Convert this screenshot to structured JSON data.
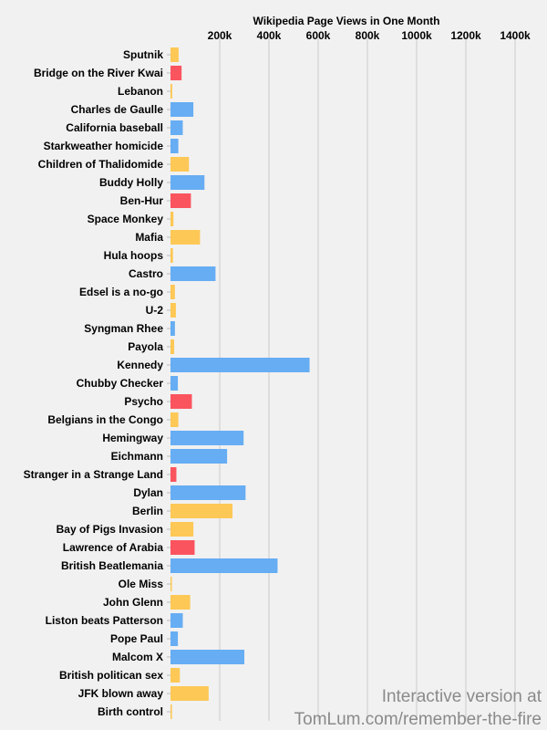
{
  "chart_data": {
    "type": "bar",
    "orientation": "horizontal",
    "title": "Wikipedia Page Views in One Month",
    "xlim": [
      0,
      1500000
    ],
    "x_ticks": [
      200000,
      400000,
      600000,
      800000,
      1000000,
      1200000,
      1400000
    ],
    "x_tick_labels": [
      "200k",
      "400k",
      "600k",
      "800k",
      "1000k",
      "1200k",
      "1400k"
    ],
    "grid": true,
    "categories": [
      "Sputnik",
      "Bridge on the River Kwai",
      "Lebanon",
      "Charles de Gaulle",
      "California baseball",
      "Starkweather homicide",
      "Children of Thalidomide",
      "Buddy Holly",
      "Ben-Hur",
      "Space Monkey",
      "Mafia",
      "Hula hoops",
      "Castro",
      "Edsel is a no-go",
      "U-2",
      "Syngman Rhee",
      "Payola",
      "Kennedy",
      "Chubby Checker",
      "Psycho",
      "Belgians in the Congo",
      "Hemingway",
      "Eichmann",
      "Stranger in a Strange Land",
      "Dylan",
      "Berlin",
      "Bay of Pigs Invasion",
      "Lawrence of Arabia",
      "British Beatlemania",
      "Ole Miss",
      "John Glenn",
      "Liston beats Patterson",
      "Pope Paul",
      "Malcom X",
      "British politican sex",
      "JFK blown away",
      "Birth control"
    ],
    "values": [
      33000,
      45000,
      7000,
      93000,
      50000,
      32000,
      75000,
      138000,
      83000,
      12000,
      120000,
      10000,
      183000,
      18000,
      22000,
      18000,
      15000,
      565000,
      30000,
      87000,
      32000,
      297000,
      230000,
      24000,
      305000,
      252000,
      93000,
      98000,
      435000,
      4000,
      80000,
      50000,
      30000,
      300000,
      38000,
      155000,
      6000
    ],
    "color_groups": [
      "yellow",
      "red",
      "yellow",
      "blue",
      "blue",
      "blue",
      "yellow",
      "blue",
      "red",
      "yellow",
      "yellow",
      "yellow",
      "blue",
      "yellow",
      "yellow",
      "blue",
      "yellow",
      "blue",
      "blue",
      "red",
      "yellow",
      "blue",
      "blue",
      "red",
      "blue",
      "yellow",
      "yellow",
      "red",
      "blue",
      "yellow",
      "yellow",
      "blue",
      "blue",
      "blue",
      "yellow",
      "yellow",
      "yellow"
    ],
    "colors": {
      "blue": "#66adf3",
      "yellow": "#fdc856",
      "red": "#fa545f"
    }
  },
  "watermark": {
    "line1": "Interactive version at",
    "line2": "TomLum.com/remember-the-fire"
  }
}
